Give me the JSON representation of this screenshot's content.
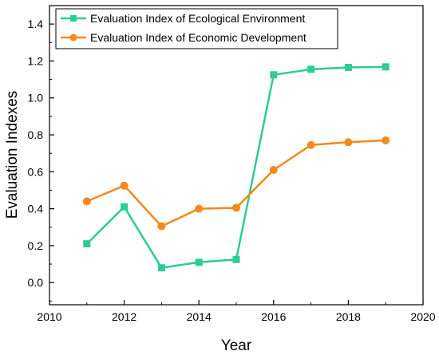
{
  "chart_data": {
    "type": "line",
    "xlabel": "Year",
    "ylabel": "Evaluation Indexes",
    "xlim": [
      2010,
      2020
    ],
    "ylim": [
      -0.12,
      1.5
    ],
    "x_ticks": [
      2010,
      2012,
      2014,
      2016,
      2018,
      2020
    ],
    "y_ticks": [
      0.0,
      0.2,
      0.4,
      0.6,
      0.8,
      1.0,
      1.2,
      1.4
    ],
    "x_tick_labels": [
      "2010",
      "2012",
      "2014",
      "2016",
      "2018",
      "2020"
    ],
    "y_tick_labels": [
      "0.0",
      "0.2",
      "0.4",
      "0.6",
      "0.8",
      "1.0",
      "1.2",
      "1.4"
    ],
    "grid": false,
    "legend_position": "top-left",
    "x": [
      2011,
      2012,
      2013,
      2014,
      2015,
      2016,
      2017,
      2018,
      2019
    ],
    "series": [
      {
        "name": "Evaluation Index of Ecological Environment",
        "color": "#2ecc8f",
        "marker": "square",
        "values": [
          0.21,
          0.41,
          0.08,
          0.11,
          0.125,
          1.125,
          1.155,
          1.165,
          1.168
        ]
      },
      {
        "name": "Evaluation Index of Economic Development",
        "color": "#f28a1e",
        "marker": "circle",
        "values": [
          0.44,
          0.525,
          0.305,
          0.4,
          0.405,
          0.61,
          0.745,
          0.76,
          0.77
        ]
      }
    ]
  }
}
